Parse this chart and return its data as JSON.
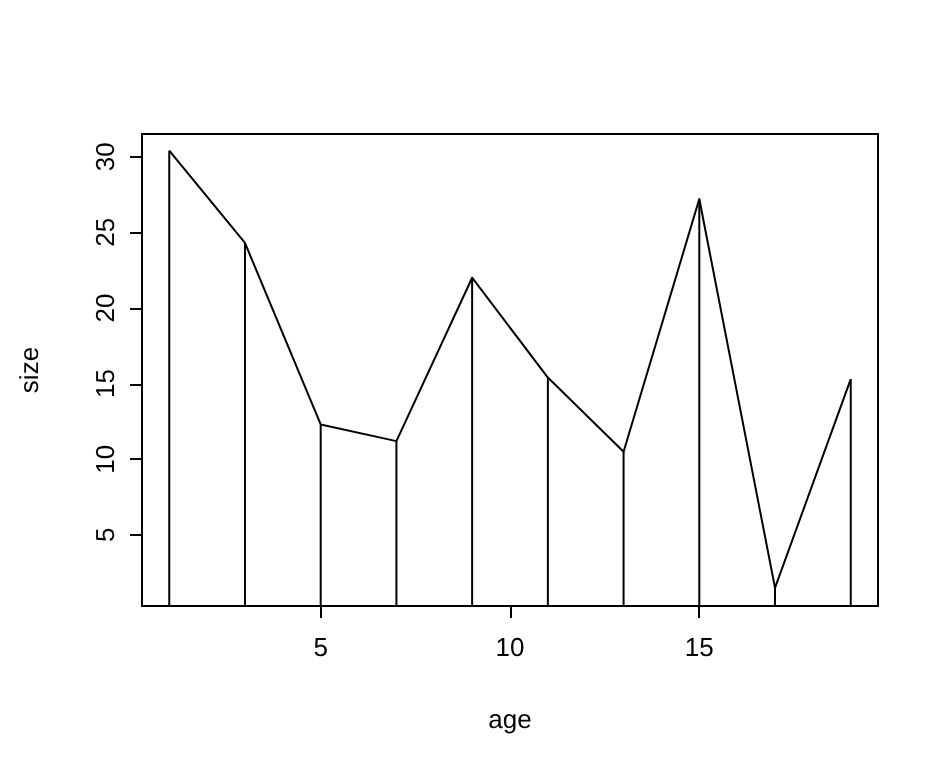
{
  "chart_data": {
    "type": "line",
    "xlabel": "age",
    "ylabel": "size",
    "x": [
      1,
      3,
      5,
      7,
      9,
      11,
      13,
      15,
      17,
      19
    ],
    "series": [
      {
        "type": "bar",
        "color": "#000000",
        "values": [
          30.4,
          24.3,
          12.3,
          11.2,
          22.0,
          15.4,
          10.5,
          27.2,
          1.5,
          15.3
        ]
      },
      {
        "color": "#000000",
        "values": [
          30.4,
          24.3,
          12.3,
          11.2,
          22.0,
          15.4,
          10.5,
          27.2,
          1.5,
          15.3
        ]
      }
    ],
    "xlim": [
      0.28,
      19.72
    ],
    "xticks": [
      5,
      10,
      15
    ],
    "ylim": [
      0.3,
      31.5
    ],
    "yticks": [
      5,
      10,
      15,
      20,
      25,
      30
    ],
    "grid": false,
    "marker": "none",
    "line_style": "solid"
  }
}
